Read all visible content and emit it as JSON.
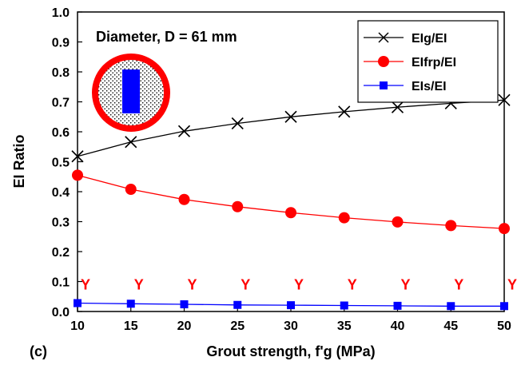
{
  "chart_data": {
    "type": "line",
    "panel_label": "(c)",
    "annotation": "Diameter, D = 61 mm",
    "xlabel": "Grout strength, f'g (MPa)",
    "ylabel": "EI Ratio",
    "x": [
      10,
      15,
      20,
      25,
      30,
      35,
      40,
      45,
      50
    ],
    "xlim": [
      10,
      50
    ],
    "ylim": [
      0,
      1
    ],
    "xticks": [
      "10",
      "15",
      "20",
      "25",
      "30",
      "35",
      "40",
      "45",
      "50"
    ],
    "yticks": [
      "0.0",
      "0.1",
      "0.2",
      "0.3",
      "0.4",
      "0.5",
      "0.6",
      "0.7",
      "0.8",
      "0.9",
      "1.0"
    ],
    "legend_position": "top-right",
    "series": [
      {
        "name": "EIg/EI",
        "color": "#000000",
        "marker": "x",
        "values": [
          0.518,
          0.566,
          0.602,
          0.628,
          0.65,
          0.667,
          0.682,
          0.695,
          0.706
        ]
      },
      {
        "name": "EIfrp/EI",
        "color": "#ff0000",
        "marker": "circle",
        "values": [
          0.455,
          0.408,
          0.374,
          0.35,
          0.33,
          0.313,
          0.299,
          0.287,
          0.277
        ]
      },
      {
        "name": "EIs/EI",
        "color": "#0000ff",
        "marker": "square",
        "values": [
          0.028,
          0.026,
          0.024,
          0.022,
          0.021,
          0.02,
          0.019,
          0.018,
          0.018
        ]
      }
    ],
    "point_markers": {
      "label": "Y",
      "color": "#ff0000",
      "y": 0.09
    }
  },
  "icon": {
    "name": "cross-section-icon",
    "outer_color": "#ff0000",
    "core_color": "#0000ff"
  }
}
